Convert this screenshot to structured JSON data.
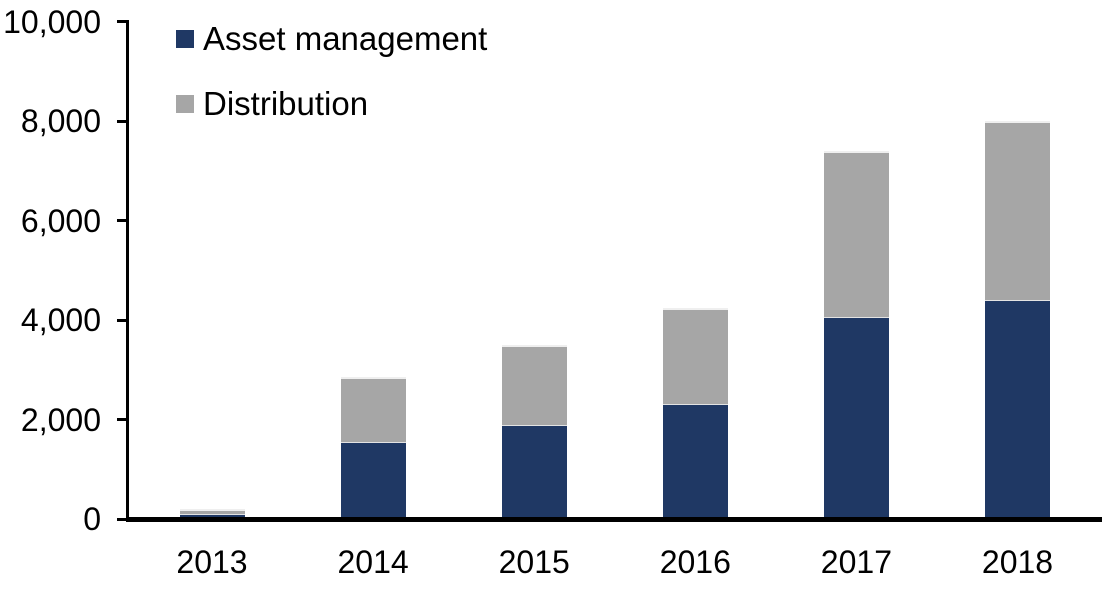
{
  "chart_data": {
    "type": "bar",
    "stacked": true,
    "title": "",
    "xlabel": "",
    "ylabel": "",
    "categories": [
      "2013",
      "2014",
      "2015",
      "2016",
      "2017",
      "2018"
    ],
    "series": [
      {
        "name": "Asset management",
        "color": "#1F3864",
        "values": [
          90,
          1530,
          1880,
          2290,
          4040,
          4390
        ]
      },
      {
        "name": "Distribution",
        "color": "#A6A6A6",
        "values": [
          110,
          1330,
          1620,
          1960,
          3350,
          3610
        ]
      }
    ],
    "totals": [
      200,
      2860,
      3500,
      4250,
      7390,
      8000
    ],
    "ylim": [
      0,
      10000
    ],
    "ytick_interval": 2000,
    "ytick_labels": [
      "0",
      "2,000",
      "4,000",
      "6,000",
      "8,000",
      "10,000"
    ],
    "grid": false,
    "legend_position": "top-left-inside",
    "axis_color": "#000000",
    "background_color": "#FFFFFF"
  }
}
